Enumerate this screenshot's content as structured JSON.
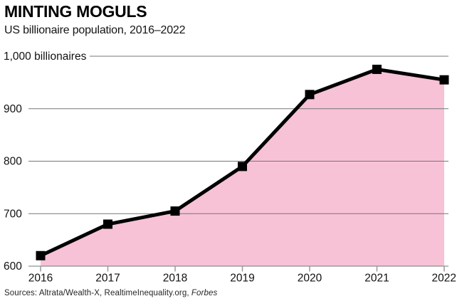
{
  "header": {
    "title": "MINTING MOGULS",
    "subtitle": "US billionaire population, 2016–2022"
  },
  "footer": {
    "sources_text": "Sources: Altrata/Wealth-X, RealtimeInequality.org, ",
    "sources_italic": "Forbes"
  },
  "chart_data": {
    "type": "area",
    "title": "MINTING MOGULS",
    "subtitle": "US billionaire population, 2016–2022",
    "x": [
      "2016",
      "2017",
      "2018",
      "2019",
      "2020",
      "2021",
      "2022"
    ],
    "values": [
      620,
      680,
      705,
      790,
      927,
      975,
      955
    ],
    "series_name": "US billionaire population",
    "ylim": [
      600,
      1000
    ],
    "yticks": [
      1000,
      900,
      800,
      700,
      600
    ],
    "ytick_labels": [
      "1,000 billionaires",
      "900",
      "800",
      "700",
      "600"
    ],
    "xlabel": "",
    "ylabel": "billionaires",
    "grid": true,
    "legend_position": "none",
    "marker": "square",
    "colors": {
      "line": "#000000",
      "fill": "#f7c1d6",
      "grid": "#777777",
      "tick": "#999999",
      "text": "#111111"
    }
  }
}
